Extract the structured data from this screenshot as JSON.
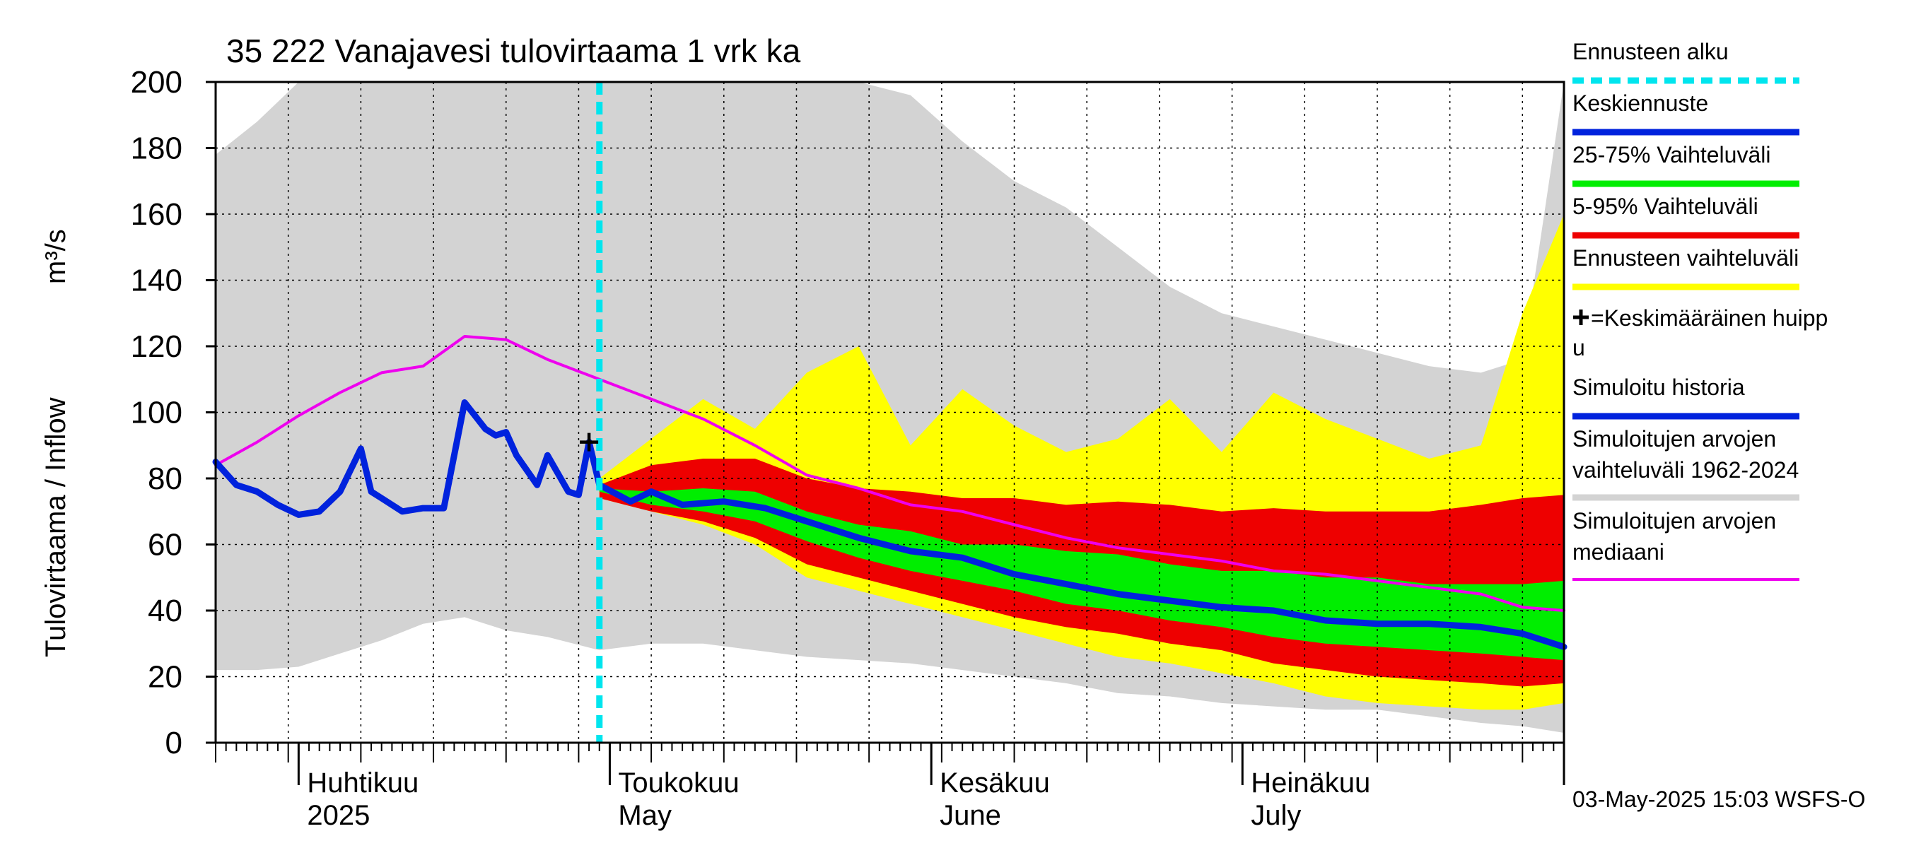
{
  "chart_data": {
    "type": "area",
    "title": "35 222 Vanajavesi tulovirtaama 1 vrk ka",
    "ylabel": "Tulovirtaama / Inflow",
    "yunit": "m³/s",
    "ylim": [
      0,
      200
    ],
    "yticks": [
      0,
      20,
      40,
      60,
      80,
      100,
      120,
      140,
      160,
      180,
      200
    ],
    "xlim": [
      "2025-03-24",
      "2025-08-01"
    ],
    "month_labels": [
      {
        "date": "2025-04-01",
        "fi": "Huhtikuu",
        "en": "2025"
      },
      {
        "date": "2025-05-01",
        "fi": "Toukokuu",
        "en": "May"
      },
      {
        "date": "2025-06-01",
        "fi": "Kesäkuu",
        "en": "June"
      },
      {
        "date": "2025-07-01",
        "fi": "Heinäkuu",
        "en": "July"
      }
    ],
    "forecast_start": "2025-04-30",
    "mean_peak": {
      "date": "2025-04-29",
      "value": 91
    },
    "timestamp": "03-May-2025 15:03 WSFS-O",
    "legend": [
      {
        "label": "Ennusteen alku",
        "color": "#00e5ee",
        "style": "dashed"
      },
      {
        "label": "Keskiennuste",
        "color": "#0022dd",
        "style": "line"
      },
      {
        "label": "25-75% Vaihteluväli",
        "color": "#00ee00",
        "style": "line"
      },
      {
        "label": "5-95% Vaihteluväli",
        "color": "#ee0000",
        "style": "line"
      },
      {
        "label": "Ennusteen vaihteluväli",
        "color": "#ffff00",
        "style": "line"
      },
      {
        "label": "=Keskimääräinen huipp",
        "label2": "u",
        "color": "#000000",
        "style": "plus"
      },
      {
        "label": "Simuloitu historia",
        "color": "#0022dd",
        "style": "line"
      },
      {
        "label": "Simuloitujen arvojen",
        "label2": "vaihteluväli 1962-2024",
        "color": "#d3d3d3",
        "style": "line"
      },
      {
        "label": "Simuloitujen arvojen",
        "label2": "mediaani",
        "color": "#ee00ee",
        "style": "line"
      }
    ],
    "series": [
      {
        "name": "Simuloitujen arvojen vaihteluväli 1962-2024",
        "type": "band",
        "color": "#d3d3d3",
        "x": [
          "2025-03-24",
          "2025-03-28",
          "2025-04-01",
          "2025-04-05",
          "2025-04-09",
          "2025-04-13",
          "2025-04-17",
          "2025-04-21",
          "2025-04-25",
          "2025-04-30",
          "2025-05-05",
          "2025-05-10",
          "2025-05-15",
          "2025-05-20",
          "2025-05-25",
          "2025-05-30",
          "2025-06-04",
          "2025-06-09",
          "2025-06-14",
          "2025-06-19",
          "2025-06-24",
          "2025-06-29",
          "2025-07-04",
          "2025-07-09",
          "2025-07-14",
          "2025-07-19",
          "2025-07-24",
          "2025-07-28",
          "2025-08-01"
        ],
        "low": [
          22,
          22,
          23,
          27,
          31,
          36,
          38,
          34,
          32,
          28,
          30,
          30,
          28,
          26,
          25,
          24,
          22,
          20,
          18,
          15,
          14,
          12,
          11,
          10,
          10,
          8,
          6,
          5,
          3
        ],
        "high": [
          178,
          188,
          200,
          200,
          200,
          200,
          200,
          200,
          200,
          200,
          200,
          200,
          200,
          200,
          200,
          196,
          182,
          170,
          162,
          150,
          138,
          130,
          126,
          122,
          118,
          114,
          112,
          116,
          200
        ]
      },
      {
        "name": "Ennusteen vaihteluväli",
        "type": "band",
        "color": "#ffff00",
        "x": [
          "2025-04-30",
          "2025-05-05",
          "2025-05-10",
          "2025-05-15",
          "2025-05-20",
          "2025-05-25",
          "2025-05-30",
          "2025-06-04",
          "2025-06-09",
          "2025-06-14",
          "2025-06-19",
          "2025-06-24",
          "2025-06-29",
          "2025-07-04",
          "2025-07-09",
          "2025-07-14",
          "2025-07-19",
          "2025-07-24",
          "2025-07-28",
          "2025-08-01"
        ],
        "low": [
          74,
          70,
          66,
          60,
          50,
          46,
          42,
          38,
          34,
          30,
          26,
          24,
          21,
          18,
          14,
          12,
          11,
          10,
          10,
          12
        ],
        "high": [
          80,
          92,
          104,
          95,
          112,
          120,
          90,
          107,
          96,
          88,
          92,
          104,
          88,
          106,
          98,
          92,
          86,
          90,
          130,
          160
        ]
      },
      {
        "name": "5-95% Vaihteluväli",
        "type": "band",
        "color": "#ee0000",
        "x": [
          "2025-04-30",
          "2025-05-05",
          "2025-05-10",
          "2025-05-15",
          "2025-05-20",
          "2025-05-25",
          "2025-05-30",
          "2025-06-04",
          "2025-06-09",
          "2025-06-14",
          "2025-06-19",
          "2025-06-24",
          "2025-06-29",
          "2025-07-04",
          "2025-07-09",
          "2025-07-14",
          "2025-07-19",
          "2025-07-24",
          "2025-07-28",
          "2025-08-01"
        ],
        "low": [
          74,
          70,
          67,
          62,
          54,
          50,
          46,
          42,
          38,
          35,
          33,
          30,
          28,
          24,
          22,
          20,
          19,
          18,
          17,
          18
        ],
        "high": [
          78,
          84,
          86,
          86,
          80,
          77,
          76,
          74,
          74,
          72,
          73,
          72,
          70,
          71,
          70,
          70,
          70,
          72,
          74,
          75
        ]
      },
      {
        "name": "25-75% Vaihteluväli",
        "type": "band",
        "color": "#00ee00",
        "x": [
          "2025-04-30",
          "2025-05-05",
          "2025-05-10",
          "2025-05-15",
          "2025-05-20",
          "2025-05-25",
          "2025-05-30",
          "2025-06-04",
          "2025-06-09",
          "2025-06-14",
          "2025-06-19",
          "2025-06-24",
          "2025-06-29",
          "2025-07-04",
          "2025-07-09",
          "2025-07-14",
          "2025-07-19",
          "2025-07-24",
          "2025-07-28",
          "2025-08-01"
        ],
        "low": [
          76,
          72,
          70,
          67,
          61,
          56,
          52,
          49,
          46,
          42,
          40,
          37,
          35,
          32,
          30,
          29,
          28,
          27,
          26,
          25
        ],
        "high": [
          77,
          76,
          77,
          76,
          70,
          66,
          64,
          60,
          60,
          58,
          57,
          54,
          52,
          52,
          50,
          50,
          48,
          48,
          48,
          49
        ]
      },
      {
        "name": "Simuloitujen arvojen mediaani",
        "type": "line",
        "color": "#ee00ee",
        "x": [
          "2025-03-24",
          "2025-03-28",
          "2025-04-01",
          "2025-04-05",
          "2025-04-09",
          "2025-04-13",
          "2025-04-17",
          "2025-04-21",
          "2025-04-25",
          "2025-04-30",
          "2025-05-05",
          "2025-05-10",
          "2025-05-15",
          "2025-05-20",
          "2025-05-25",
          "2025-05-30",
          "2025-06-04",
          "2025-06-09",
          "2025-06-14",
          "2025-06-19",
          "2025-06-24",
          "2025-06-29",
          "2025-07-04",
          "2025-07-09",
          "2025-07-14",
          "2025-07-19",
          "2025-07-24",
          "2025-07-28",
          "2025-08-01"
        ],
        "values": [
          84,
          91,
          99,
          106,
          112,
          114,
          123,
          122,
          116,
          110,
          104,
          98,
          90,
          81,
          77,
          72,
          70,
          66,
          62,
          59,
          57,
          55,
          52,
          51,
          49,
          47,
          45,
          41,
          40
        ]
      },
      {
        "name": "Simuloitu historia",
        "type": "line",
        "color": "#0022dd",
        "x": [
          "2025-03-24",
          "2025-03-26",
          "2025-03-28",
          "2025-03-30",
          "2025-04-01",
          "2025-04-03",
          "2025-04-05",
          "2025-04-07",
          "2025-04-08",
          "2025-04-09",
          "2025-04-11",
          "2025-04-13",
          "2025-04-15",
          "2025-04-17",
          "2025-04-19",
          "2025-04-20",
          "2025-04-21",
          "2025-04-22",
          "2025-04-24",
          "2025-04-25",
          "2025-04-27",
          "2025-04-28",
          "2025-04-29",
          "2025-04-30"
        ],
        "values": [
          85,
          78,
          76,
          72,
          69,
          70,
          76,
          89,
          76,
          74,
          70,
          71,
          71,
          103,
          95,
          93,
          94,
          87,
          78,
          87,
          76,
          75,
          91,
          78
        ]
      },
      {
        "name": "Keskiennuste",
        "type": "line",
        "color": "#0022dd",
        "x": [
          "2025-04-30",
          "2025-05-03",
          "2025-05-05",
          "2025-05-08",
          "2025-05-12",
          "2025-05-16",
          "2025-05-20",
          "2025-05-25",
          "2025-05-30",
          "2025-06-04",
          "2025-06-09",
          "2025-06-14",
          "2025-06-19",
          "2025-06-24",
          "2025-06-29",
          "2025-07-04",
          "2025-07-09",
          "2025-07-14",
          "2025-07-19",
          "2025-07-24",
          "2025-07-28",
          "2025-08-01"
        ],
        "values": [
          78,
          73,
          76,
          72,
          73,
          71,
          67,
          62,
          58,
          56,
          51,
          48,
          45,
          43,
          41,
          40,
          37,
          36,
          36,
          35,
          33,
          29
        ]
      }
    ]
  }
}
